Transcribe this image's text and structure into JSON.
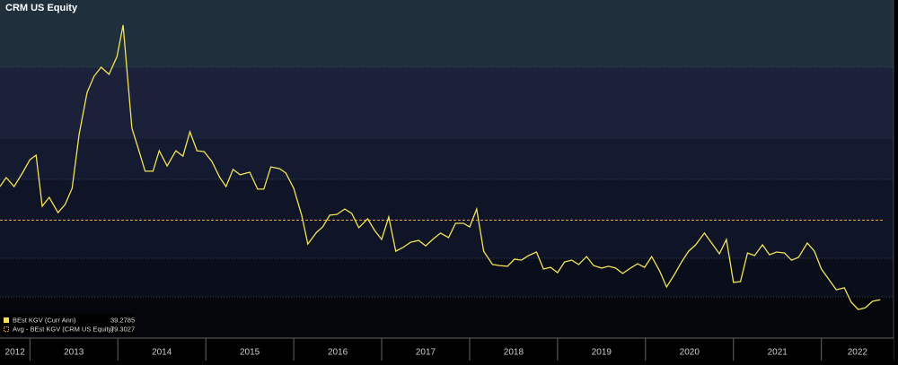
{
  "chart_data": {
    "type": "line",
    "title": "CRM US Equity",
    "x": [
      2012.66,
      2012.73,
      2012.82,
      2012.92,
      2013.0,
      2013.07,
      2013.14,
      2013.22,
      2013.32,
      2013.4,
      2013.48,
      2013.56,
      2013.65,
      2013.73,
      2013.81,
      2013.9,
      2013.99,
      2014.06,
      2014.16,
      2014.23,
      2014.31,
      2014.4,
      2014.47,
      2014.56,
      2014.66,
      2014.74,
      2014.82,
      2014.9,
      2014.98,
      2015.07,
      2015.16,
      2015.23,
      2015.31,
      2015.39,
      2015.5,
      2015.59,
      2015.66,
      2015.74,
      2015.84,
      2015.91,
      2016.0,
      2016.09,
      2016.16,
      2016.26,
      2016.33,
      2016.41,
      2016.49,
      2016.58,
      2016.66,
      2016.74,
      2016.84,
      2016.92,
      2017.0,
      2017.08,
      2017.16,
      2017.24,
      2017.33,
      2017.42,
      2017.5,
      2017.59,
      2017.67,
      2017.76,
      2017.84,
      2017.93,
      2018.0,
      2018.08,
      2018.16,
      2018.26,
      2018.34,
      2018.43,
      2018.51,
      2018.59,
      2018.67,
      2018.76,
      2018.84,
      2018.92,
      2019.0,
      2019.08,
      2019.16,
      2019.24,
      2019.33,
      2019.41,
      2019.5,
      2019.58,
      2019.66,
      2019.74,
      2019.83,
      2019.91,
      2019.99,
      2020.07,
      2020.16,
      2020.24,
      2020.33,
      2020.41,
      2020.49,
      2020.57,
      2020.67,
      2020.76,
      2020.84,
      2020.92,
      2021.0,
      2021.08,
      2021.16,
      2021.24,
      2021.33,
      2021.41,
      2021.49,
      2021.58,
      2021.66,
      2021.74,
      2021.84,
      2021.92,
      2022.0,
      2022.08,
      2022.17,
      2022.26,
      2022.34,
      2022.42,
      2022.5,
      2022.58,
      2022.67
    ],
    "series": [
      {
        "name": "BEst KGV (Curr Ann)",
        "color": "#f2e35a",
        "values": [
          96.2,
          100.7,
          96.2,
          103.4,
          109.7,
          112.0,
          86.3,
          90.8,
          83.1,
          87.2,
          95.3,
          122.4,
          143.5,
          151.7,
          156.2,
          152.6,
          161.6,
          177.4,
          125.5,
          115.6,
          103.9,
          103.9,
          114.2,
          106.6,
          114.2,
          111.5,
          123.7,
          114.2,
          113.8,
          108.8,
          100.7,
          96.2,
          104.8,
          102.1,
          103.4,
          94.9,
          94.9,
          106.1,
          105.2,
          103.0,
          95.3,
          81.8,
          67.3,
          73.2,
          75.9,
          81.8,
          82.2,
          84.9,
          82.7,
          75.5,
          80.0,
          74.1,
          69.6,
          80.9,
          63.7,
          65.5,
          68.2,
          69.1,
          66.4,
          70.0,
          72.8,
          70.5,
          77.7,
          77.7,
          75.9,
          84.9,
          63.7,
          57.0,
          56.5,
          56.1,
          59.7,
          59.2,
          61.5,
          63.3,
          54.7,
          55.6,
          52.9,
          58.3,
          59.2,
          57.0,
          61.0,
          56.5,
          55.2,
          56.1,
          55.2,
          52.5,
          55.2,
          57.4,
          55.6,
          61.0,
          53.8,
          45.7,
          52.0,
          58.3,
          63.7,
          66.9,
          72.8,
          67.3,
          62.4,
          69.6,
          48.0,
          48.4,
          62.8,
          61.5,
          66.9,
          61.9,
          63.3,
          62.8,
          59.2,
          60.6,
          67.8,
          63.7,
          54.7,
          49.8,
          44.3,
          45.3,
          38.0,
          34.4,
          35.3,
          38.5,
          39.2785
        ]
      }
    ],
    "average": {
      "name": "Avg - BEst KGV (CRM US Equity)",
      "value": 79.3027,
      "color": "#e8a33a"
    },
    "xlim": [
      2012.66,
      2022.82
    ],
    "xticks": [
      2012,
      2013,
      2014,
      2015,
      2016,
      2017,
      2018,
      2019,
      2020,
      2021,
      2022
    ],
    "ylim": [
      20,
      190
    ]
  }
}
